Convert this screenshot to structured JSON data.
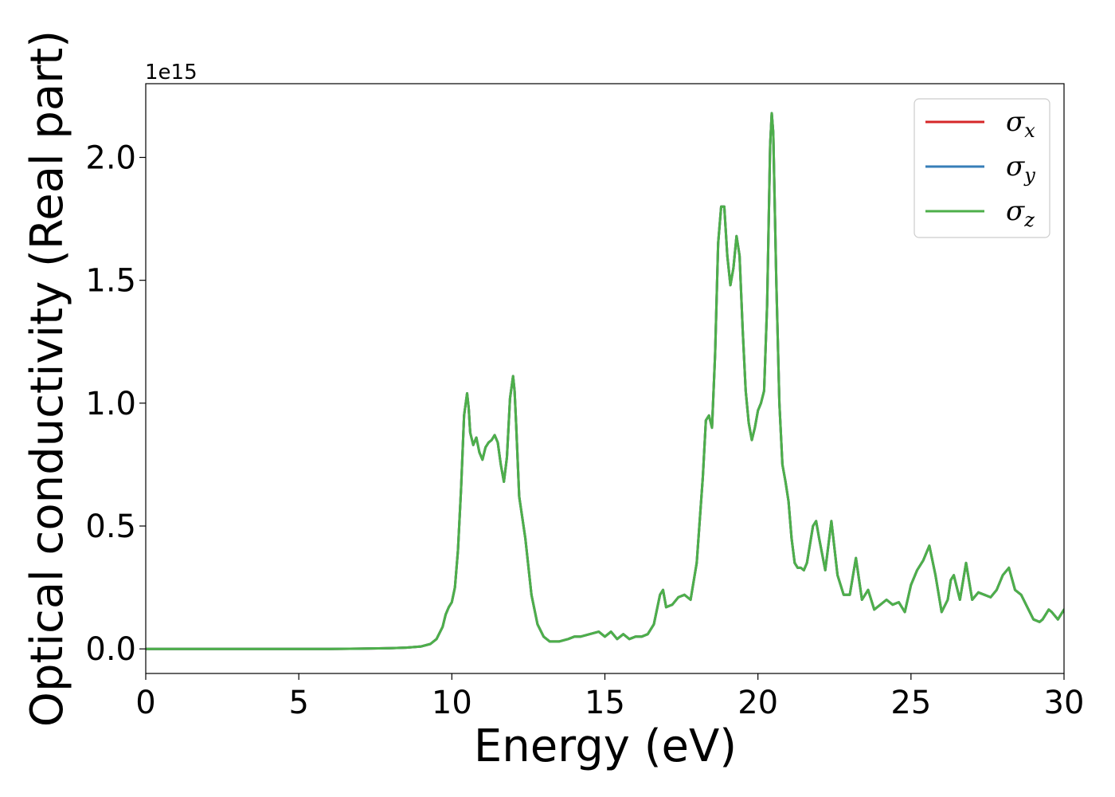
{
  "chart_data": {
    "type": "line",
    "title": "",
    "xlabel": "Energy (eV)",
    "ylabel": "Optical conductivity (Real part)",
    "y_offset_label": "1e15",
    "xlim": [
      0,
      30
    ],
    "ylim": [
      -0.1,
      2.3
    ],
    "y_multiplier": 1000000000000000.0,
    "grid": false,
    "legend_position": "top-right",
    "x_ticks": [
      0,
      5,
      10,
      15,
      20,
      25,
      30
    ],
    "x_tick_labels": [
      "0",
      "5",
      "10",
      "15",
      "20",
      "25",
      "30"
    ],
    "y_ticks": [
      0.0,
      0.5,
      1.0,
      1.5,
      2.0
    ],
    "y_tick_labels": [
      "0.0",
      "0.5",
      "1.0",
      "1.5",
      "2.0"
    ],
    "x": [
      0,
      2,
      4,
      6,
      7,
      8,
      8.5,
      9,
      9.3,
      9.5,
      9.7,
      9.8,
      9.9,
      10.0,
      10.1,
      10.2,
      10.3,
      10.4,
      10.5,
      10.55,
      10.6,
      10.7,
      10.8,
      10.9,
      11.0,
      11.1,
      11.2,
      11.3,
      11.4,
      11.5,
      11.6,
      11.7,
      11.8,
      11.9,
      12.0,
      12.05,
      12.1,
      12.2,
      12.4,
      12.6,
      12.8,
      13.0,
      13.2,
      13.5,
      13.8,
      14.0,
      14.2,
      14.5,
      14.8,
      15.0,
      15.2,
      15.4,
      15.6,
      15.8,
      16.0,
      16.2,
      16.4,
      16.6,
      16.8,
      16.9,
      17.0,
      17.2,
      17.4,
      17.6,
      17.8,
      18.0,
      18.2,
      18.3,
      18.4,
      18.5,
      18.6,
      18.7,
      18.8,
      18.9,
      19.0,
      19.1,
      19.2,
      19.3,
      19.4,
      19.5,
      19.6,
      19.7,
      19.8,
      19.9,
      20.0,
      20.1,
      20.2,
      20.3,
      20.4,
      20.45,
      20.5,
      20.6,
      20.7,
      20.8,
      20.9,
      21.0,
      21.1,
      21.2,
      21.3,
      21.4,
      21.5,
      21.6,
      21.8,
      21.9,
      22.0,
      22.2,
      22.4,
      22.6,
      22.8,
      23.0,
      23.2,
      23.4,
      23.6,
      23.8,
      24.0,
      24.2,
      24.4,
      24.6,
      24.8,
      25.0,
      25.2,
      25.4,
      25.6,
      25.8,
      26.0,
      26.2,
      26.3,
      26.4,
      26.6,
      26.8,
      27.0,
      27.2,
      27.4,
      27.6,
      27.8,
      28.0,
      28.2,
      28.4,
      28.6,
      28.8,
      29.0,
      29.2,
      29.3,
      29.5,
      29.6,
      29.8,
      30.0
    ],
    "series": [
      {
        "name": "σx",
        "name_base": "σ",
        "name_sub": "x",
        "color": "#d62728",
        "values": [
          0,
          0,
          0,
          0,
          0.001,
          0.003,
          0.005,
          0.01,
          0.02,
          0.04,
          0.09,
          0.14,
          0.17,
          0.19,
          0.25,
          0.4,
          0.65,
          0.95,
          1.04,
          0.98,
          0.88,
          0.83,
          0.86,
          0.8,
          0.77,
          0.82,
          0.84,
          0.85,
          0.87,
          0.84,
          0.75,
          0.68,
          0.78,
          1.02,
          1.11,
          1.05,
          0.92,
          0.62,
          0.45,
          0.22,
          0.1,
          0.05,
          0.03,
          0.03,
          0.04,
          0.05,
          0.05,
          0.06,
          0.07,
          0.05,
          0.07,
          0.04,
          0.06,
          0.04,
          0.05,
          0.05,
          0.06,
          0.1,
          0.22,
          0.24,
          0.17,
          0.18,
          0.21,
          0.22,
          0.2,
          0.35,
          0.7,
          0.93,
          0.95,
          0.9,
          1.2,
          1.65,
          1.8,
          1.8,
          1.6,
          1.48,
          1.55,
          1.68,
          1.6,
          1.3,
          1.05,
          0.92,
          0.85,
          0.9,
          0.97,
          1.0,
          1.05,
          1.4,
          2.05,
          2.18,
          2.1,
          1.5,
          1.0,
          0.75,
          0.68,
          0.6,
          0.45,
          0.35,
          0.33,
          0.33,
          0.32,
          0.35,
          0.5,
          0.52,
          0.45,
          0.32,
          0.52,
          0.3,
          0.22,
          0.22,
          0.37,
          0.2,
          0.24,
          0.16,
          0.18,
          0.2,
          0.18,
          0.19,
          0.15,
          0.26,
          0.32,
          0.36,
          0.42,
          0.3,
          0.15,
          0.2,
          0.28,
          0.3,
          0.2,
          0.35,
          0.2,
          0.23,
          0.22,
          0.21,
          0.24,
          0.3,
          0.33,
          0.24,
          0.22,
          0.17,
          0.12,
          0.11,
          0.12,
          0.16,
          0.15,
          0.12,
          0.16
        ]
      },
      {
        "name": "σy",
        "name_base": "σ",
        "name_sub": "y",
        "color": "#377eb8",
        "values": [
          0,
          0,
          0,
          0,
          0.001,
          0.003,
          0.005,
          0.01,
          0.02,
          0.04,
          0.09,
          0.14,
          0.17,
          0.19,
          0.25,
          0.4,
          0.65,
          0.95,
          1.04,
          0.98,
          0.88,
          0.83,
          0.86,
          0.8,
          0.77,
          0.82,
          0.84,
          0.85,
          0.87,
          0.84,
          0.75,
          0.68,
          0.78,
          1.02,
          1.11,
          1.05,
          0.92,
          0.62,
          0.45,
          0.22,
          0.1,
          0.05,
          0.03,
          0.03,
          0.04,
          0.05,
          0.05,
          0.06,
          0.07,
          0.05,
          0.07,
          0.04,
          0.06,
          0.04,
          0.05,
          0.05,
          0.06,
          0.1,
          0.22,
          0.24,
          0.17,
          0.18,
          0.21,
          0.22,
          0.2,
          0.35,
          0.7,
          0.93,
          0.95,
          0.9,
          1.2,
          1.65,
          1.8,
          1.8,
          1.6,
          1.48,
          1.55,
          1.68,
          1.6,
          1.3,
          1.05,
          0.92,
          0.85,
          0.9,
          0.97,
          1.0,
          1.05,
          1.4,
          2.05,
          2.18,
          2.1,
          1.5,
          1.0,
          0.75,
          0.68,
          0.6,
          0.45,
          0.35,
          0.33,
          0.33,
          0.32,
          0.35,
          0.5,
          0.52,
          0.45,
          0.32,
          0.52,
          0.3,
          0.22,
          0.22,
          0.37,
          0.2,
          0.24,
          0.16,
          0.18,
          0.2,
          0.18,
          0.19,
          0.15,
          0.26,
          0.32,
          0.36,
          0.42,
          0.3,
          0.15,
          0.2,
          0.28,
          0.3,
          0.2,
          0.35,
          0.2,
          0.23,
          0.22,
          0.21,
          0.24,
          0.3,
          0.33,
          0.24,
          0.22,
          0.17,
          0.12,
          0.11,
          0.12,
          0.16,
          0.15,
          0.12,
          0.16
        ]
      },
      {
        "name": "σz",
        "name_base": "σ",
        "name_sub": "z",
        "color": "#4daf4a",
        "values": [
          0,
          0,
          0,
          0,
          0.001,
          0.003,
          0.005,
          0.01,
          0.02,
          0.04,
          0.09,
          0.14,
          0.17,
          0.19,
          0.25,
          0.4,
          0.65,
          0.95,
          1.04,
          0.98,
          0.88,
          0.83,
          0.86,
          0.8,
          0.77,
          0.82,
          0.84,
          0.85,
          0.87,
          0.84,
          0.75,
          0.68,
          0.78,
          1.02,
          1.11,
          1.05,
          0.92,
          0.62,
          0.45,
          0.22,
          0.1,
          0.05,
          0.03,
          0.03,
          0.04,
          0.05,
          0.05,
          0.06,
          0.07,
          0.05,
          0.07,
          0.04,
          0.06,
          0.04,
          0.05,
          0.05,
          0.06,
          0.1,
          0.22,
          0.24,
          0.17,
          0.18,
          0.21,
          0.22,
          0.2,
          0.35,
          0.7,
          0.93,
          0.95,
          0.9,
          1.2,
          1.65,
          1.8,
          1.8,
          1.6,
          1.48,
          1.55,
          1.68,
          1.6,
          1.3,
          1.05,
          0.92,
          0.85,
          0.9,
          0.97,
          1.0,
          1.05,
          1.4,
          2.05,
          2.18,
          2.1,
          1.5,
          1.0,
          0.75,
          0.68,
          0.6,
          0.45,
          0.35,
          0.33,
          0.33,
          0.32,
          0.35,
          0.5,
          0.52,
          0.45,
          0.32,
          0.52,
          0.3,
          0.22,
          0.22,
          0.37,
          0.2,
          0.24,
          0.16,
          0.18,
          0.2,
          0.18,
          0.19,
          0.15,
          0.26,
          0.32,
          0.36,
          0.42,
          0.3,
          0.15,
          0.2,
          0.28,
          0.3,
          0.2,
          0.35,
          0.2,
          0.23,
          0.22,
          0.21,
          0.24,
          0.3,
          0.33,
          0.24,
          0.22,
          0.17,
          0.12,
          0.11,
          0.12,
          0.16,
          0.15,
          0.12,
          0.16
        ]
      }
    ]
  }
}
